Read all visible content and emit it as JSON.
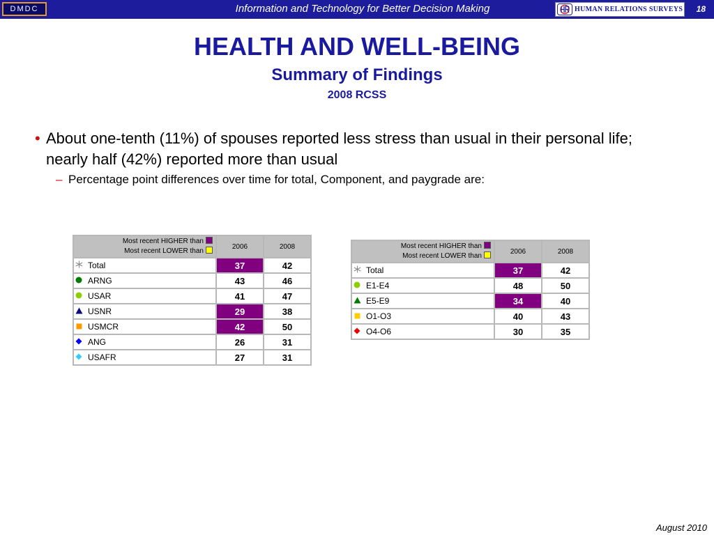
{
  "header": {
    "logo_text": "DMDC",
    "title": "Information and Technology for Better Decision Making",
    "org_logo_text": "HUMAN RELATIONS SURVEYS",
    "page_number": "18",
    "bar_color": "#1c1c9c",
    "accent_color": "#e39a2c"
  },
  "slide": {
    "title": "HEALTH AND WELL-BEING",
    "subtitle": "Summary of Findings",
    "subtitle2": "2008 RCSS",
    "bullet": "About one-tenth (11%) of spouses reported less stress than usual in their personal life; nearly half (42%) reported more than usual",
    "sub_bullet": "Percentage point differences over time for total, Component, and paygrade are:",
    "bullet_marker": "•",
    "sub_bullet_marker": "–"
  },
  "legend": {
    "higher_label": "Most recent HIGHER than",
    "lower_label": "Most recent LOWER than",
    "higher_color": "#800080",
    "lower_color": "#ffff00"
  },
  "component_table": {
    "columns": [
      "2006",
      "2008"
    ],
    "rows": [
      {
        "label": "Total",
        "marker": "asterisk",
        "marker_color": "#888888",
        "v2006": "37",
        "v2008": "42",
        "higher": true
      },
      {
        "label": "ARNG",
        "marker": "circle",
        "marker_color": "#007a00",
        "v2006": "43",
        "v2008": "46",
        "higher": false
      },
      {
        "label": "USAR",
        "marker": "circle",
        "marker_color": "#8fce00",
        "v2006": "41",
        "v2008": "47",
        "higher": false
      },
      {
        "label": "USNR",
        "marker": "triangle",
        "marker_color": "#0a0a80",
        "v2006": "29",
        "v2008": "38",
        "higher": true
      },
      {
        "label": "USMCR",
        "marker": "square",
        "marker_color": "#ff9900",
        "v2006": "42",
        "v2008": "50",
        "higher": true
      },
      {
        "label": "ANG",
        "marker": "diamond",
        "marker_color": "#0000ff",
        "v2006": "26",
        "v2008": "31",
        "higher": false
      },
      {
        "label": "USAFR",
        "marker": "diamond",
        "marker_color": "#33ccff",
        "v2006": "27",
        "v2008": "31",
        "higher": false
      }
    ]
  },
  "paygrade_table": {
    "columns": [
      "2006",
      "2008"
    ],
    "rows": [
      {
        "label": "Total",
        "marker": "asterisk",
        "marker_color": "#888888",
        "v2006": "37",
        "v2008": "42",
        "higher": true
      },
      {
        "label": "E1-E4",
        "marker": "circle",
        "marker_color": "#8fce00",
        "v2006": "48",
        "v2008": "50",
        "higher": false
      },
      {
        "label": "E5-E9",
        "marker": "triangle",
        "marker_color": "#007a00",
        "v2006": "34",
        "v2008": "40",
        "higher": true
      },
      {
        "label": "O1-O3",
        "marker": "square",
        "marker_color": "#ffcc00",
        "v2006": "40",
        "v2008": "43",
        "higher": false
      },
      {
        "label": "O4-O6",
        "marker": "diamond",
        "marker_color": "#ee0000",
        "v2006": "30",
        "v2008": "35",
        "higher": false
      }
    ]
  },
  "footer": {
    "date": "August 2010"
  }
}
